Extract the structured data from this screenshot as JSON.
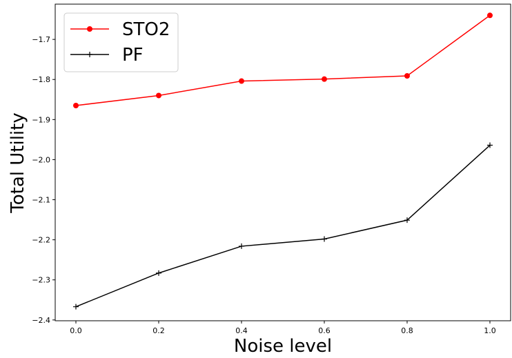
{
  "chart_data": {
    "type": "line",
    "title": "",
    "xlabel": "Noise level",
    "ylabel": "Total Utility",
    "x": [
      0.0,
      0.2,
      0.4,
      0.6,
      0.8,
      1.0
    ],
    "xlim": [
      -0.05,
      1.05
    ],
    "ylim": [
      -2.402,
      -1.612
    ],
    "x_ticks": [
      {
        "value": 0.0,
        "label": "0.0"
      },
      {
        "value": 0.2,
        "label": "0.2"
      },
      {
        "value": 0.4,
        "label": "0.4"
      },
      {
        "value": 0.6,
        "label": "0.6"
      },
      {
        "value": 0.8,
        "label": "0.8"
      },
      {
        "value": 1.0,
        "label": "1.0"
      }
    ],
    "y_ticks": [
      {
        "value": -1.7,
        "label": "−1.7"
      },
      {
        "value": -1.8,
        "label": "−1.8"
      },
      {
        "value": -1.9,
        "label": "−1.9"
      },
      {
        "value": -2.0,
        "label": "−2.0"
      },
      {
        "value": -2.1,
        "label": "−2.1"
      },
      {
        "value": -2.2,
        "label": "−2.2"
      },
      {
        "value": -2.3,
        "label": "−2.3"
      },
      {
        "value": -2.4,
        "label": "−2.4"
      }
    ],
    "grid": false,
    "legend_position": "top-left",
    "series": [
      {
        "name": "STO2",
        "values": [
          -1.865,
          -1.84,
          -1.804,
          -1.799,
          -1.791,
          -1.64
        ],
        "color": "#ff0000",
        "marker": "circle"
      },
      {
        "name": "PF",
        "values": [
          -2.367,
          -2.283,
          -2.216,
          -2.198,
          -2.151,
          -1.964
        ],
        "color": "#000000",
        "marker": "plus"
      }
    ]
  }
}
